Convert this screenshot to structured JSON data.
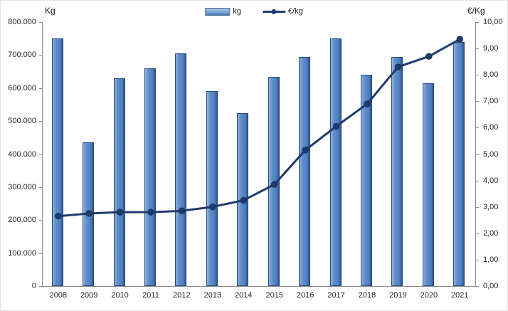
{
  "chart_data": {
    "type": "bar+line",
    "title": "",
    "categories": [
      "2008",
      "2009",
      "2010",
      "2011",
      "2012",
      "2013",
      "2014",
      "2015",
      "2016",
      "2017",
      "2018",
      "2019",
      "2020",
      "2021"
    ],
    "series": [
      {
        "name": "kg",
        "type": "bar",
        "axis": "left",
        "color": "#5b87c5",
        "values": [
          750000,
          435000,
          630000,
          660000,
          705000,
          590000,
          525000,
          635000,
          695000,
          750000,
          640000,
          695000,
          615000,
          740000
        ]
      },
      {
        "name": "€/kg",
        "type": "line",
        "axis": "right",
        "color": "#1f3b6d",
        "values": [
          2.65,
          2.75,
          2.8,
          2.8,
          2.85,
          3.0,
          3.25,
          3.85,
          5.15,
          6.05,
          6.9,
          8.3,
          8.7,
          9.35
        ]
      }
    ],
    "left_axis": {
      "label": "Kg",
      "min": 0,
      "max": 800000,
      "step": 100000,
      "tick_labels_top_down": [
        "800.000",
        "700.000",
        "600.000",
        "500.000",
        "400.000",
        "300.000",
        "200.000",
        "100.000",
        "0"
      ]
    },
    "right_axis": {
      "label": "€/Kg",
      "min": 0,
      "max": 10,
      "step": 1,
      "tick_labels_top_down": [
        "10,00",
        "9,00",
        "8,00",
        "7,00",
        "6,00",
        "5,00",
        "4,00",
        "3,00",
        "2,00",
        "1,00",
        "0,00"
      ]
    },
    "legend_position": "top-center",
    "grid": false
  },
  "colors": {
    "bar_fill": "#5b87c5",
    "bar_border": "#254a80",
    "line": "#1f3b6d",
    "axis": "#8c8c8c",
    "text": "#1f1f1f",
    "background": "#ffffff"
  }
}
